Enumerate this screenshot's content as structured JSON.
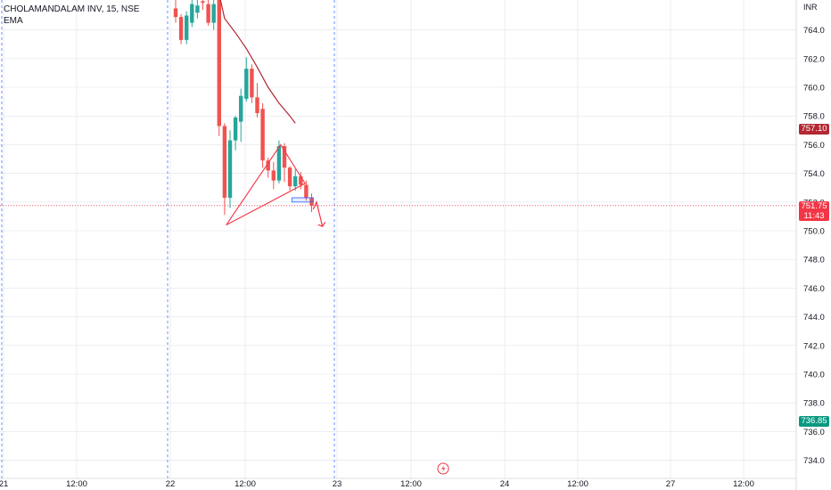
{
  "legend": {
    "symbol_line": "CHOLAMANDALAM INV, 15, NSE",
    "indicator": "EMA"
  },
  "axis": {
    "currency": "INR"
  },
  "price_tags": {
    "last_price": "751.75",
    "countdown": "11:43",
    "ema_value": "757.10",
    "low_mark": "736.85"
  },
  "colors": {
    "up": "#26a69a",
    "down": "#ef5350",
    "drawing": "#f23645",
    "ema": "#b22833",
    "session_line": "#2962ff",
    "grid": "#e0e3eb",
    "axis_text": "#131722",
    "tag_red": "#f23645",
    "tag_ema": "#b22833",
    "tag_teal": "#089981"
  },
  "chart_data": {
    "type": "candlestick",
    "y_ticks": [
      734,
      736,
      738,
      740,
      742,
      744,
      746,
      748,
      750,
      752,
      754,
      756,
      758,
      760,
      762,
      764
    ],
    "x_ticks": [
      "21",
      "12:00",
      "22",
      "12:00",
      "23",
      "12:00",
      "24",
      "12:00",
      "27",
      "12:00"
    ],
    "ylim": [
      733,
      766
    ],
    "candles": [
      {
        "t": 0,
        "o": 765.5,
        "h": 766.4,
        "l": 764.5,
        "c": 764.9
      },
      {
        "t": 1,
        "o": 764.9,
        "h": 765.1,
        "l": 763.0,
        "c": 763.3
      },
      {
        "t": 2,
        "o": 763.3,
        "h": 765.3,
        "l": 763.0,
        "c": 765.0
      },
      {
        "t": 3,
        "o": 764.5,
        "h": 766.3,
        "l": 764.2,
        "c": 765.8
      },
      {
        "t": 4,
        "o": 765.2,
        "h": 766.3,
        "l": 764.8,
        "c": 765.7
      },
      {
        "t": 5,
        "o": 766.0,
        "h": 766.2,
        "l": 765.4,
        "c": 765.9
      },
      {
        "t": 6,
        "o": 765.8,
        "h": 766.4,
        "l": 764.3,
        "c": 764.5
      },
      {
        "t": 7,
        "o": 764.5,
        "h": 766.1,
        "l": 764.0,
        "c": 765.8
      },
      {
        "t": 8,
        "o": 766.3,
        "h": 766.5,
        "l": 756.6,
        "c": 757.3
      },
      {
        "t": 9,
        "o": 757.3,
        "h": 757.5,
        "l": 751.1,
        "c": 752.3
      },
      {
        "t": 10,
        "o": 752.3,
        "h": 757.0,
        "l": 751.6,
        "c": 756.3
      },
      {
        "t": 11,
        "o": 756.3,
        "h": 758.0,
        "l": 755.6,
        "c": 757.9
      },
      {
        "t": 12,
        "o": 757.6,
        "h": 759.9,
        "l": 756.2,
        "c": 759.4
      },
      {
        "t": 13,
        "o": 759.2,
        "h": 762.1,
        "l": 759.0,
        "c": 761.3
      },
      {
        "t": 14,
        "o": 761.3,
        "h": 761.6,
        "l": 758.9,
        "c": 759.3
      },
      {
        "t": 15,
        "o": 759.3,
        "h": 760.3,
        "l": 757.9,
        "c": 758.2
      },
      {
        "t": 16,
        "o": 758.5,
        "h": 758.9,
        "l": 754.4,
        "c": 754.9
      },
      {
        "t": 17,
        "o": 754.9,
        "h": 755.1,
        "l": 753.7,
        "c": 754.2
      },
      {
        "t": 18,
        "o": 754.2,
        "h": 754.8,
        "l": 752.9,
        "c": 753.5
      },
      {
        "t": 19,
        "o": 753.5,
        "h": 756.3,
        "l": 753.3,
        "c": 755.9
      },
      {
        "t": 20,
        "o": 755.9,
        "h": 756.1,
        "l": 753.4,
        "c": 754.4
      },
      {
        "t": 21,
        "o": 754.4,
        "h": 754.5,
        "l": 752.8,
        "c": 753.1
      },
      {
        "t": 22,
        "o": 753.1,
        "h": 754.3,
        "l": 752.8,
        "c": 753.8
      },
      {
        "t": 23,
        "o": 753.8,
        "h": 754.1,
        "l": 752.9,
        "c": 753.2
      },
      {
        "t": 24,
        "o": 753.2,
        "h": 753.5,
        "l": 752.1,
        "c": 752.3
      },
      {
        "t": 25,
        "o": 752.3,
        "h": 752.6,
        "l": 751.3,
        "c": 751.75
      }
    ],
    "ema": [
      {
        "t": 8,
        "v": 766.5
      },
      {
        "t": 9,
        "v": 764.8
      },
      {
        "t": 11,
        "v": 763.8
      },
      {
        "t": 13,
        "v": 762.7
      },
      {
        "t": 15,
        "v": 761.4
      },
      {
        "t": 17,
        "v": 760.0
      },
      {
        "t": 19,
        "v": 758.9
      },
      {
        "t": 21,
        "v": 758.0
      },
      {
        "t": 22,
        "v": 757.5
      }
    ],
    "triangle": [
      {
        "t": 9.3,
        "v": 750.4
      },
      {
        "t": 19.3,
        "v": 756.0
      },
      {
        "t": 23.8,
        "v": 753.3
      },
      {
        "t": 9.3,
        "v": 750.4
      }
    ],
    "zone": {
      "t0": 21.4,
      "t1": 25.3,
      "v0": 752.0,
      "v1": 752.3
    },
    "projection": [
      {
        "t": 25.3,
        "v": 751.5
      },
      {
        "t": 25.9,
        "v": 752.0
      },
      {
        "t": 27.0,
        "v": 750.3
      }
    ]
  }
}
